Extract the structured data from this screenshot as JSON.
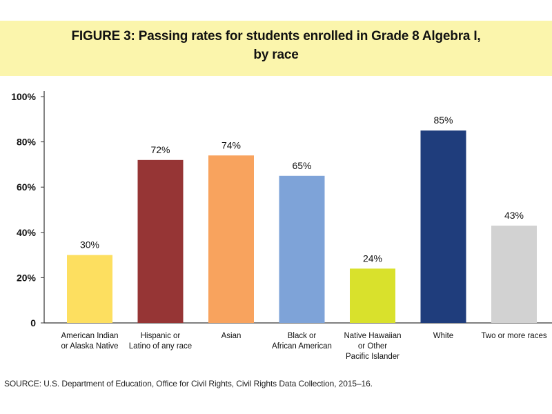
{
  "figure": {
    "title_line_1": "FIGURE 3: Passing rates for students enrolled in Grade 8 Algebra I,",
    "title_line_2": "by race",
    "source": "SOURCE: U.S. Department of Education, Office for Civil Rights, Civil Rights Data Collection, 2015–16."
  },
  "chart_data": {
    "type": "bar",
    "title": "FIGURE 3: Passing rates for students enrolled in Grade 8 Algebra I, by race",
    "categories": [
      [
        "American Indian",
        "or Alaska Native"
      ],
      [
        "Hispanic or",
        "Latino of any race"
      ],
      [
        "Asian"
      ],
      [
        "Black or",
        "African American"
      ],
      [
        "Native Hawaiian",
        "or Other",
        "Pacific Islander"
      ],
      [
        "White"
      ],
      [
        "Two or more races"
      ]
    ],
    "values": [
      30,
      72,
      74,
      65,
      24,
      85,
      43
    ],
    "data_labels": [
      "30%",
      "72%",
      "74%",
      "65%",
      "24%",
      "85%",
      "43%"
    ],
    "colors": [
      "#fddf60",
      "#963535",
      "#f8a35e",
      "#7ea3d8",
      "#d9e12c",
      "#1f3d7c",
      "#d2d2d2"
    ],
    "y_ticks": [
      0,
      20,
      40,
      60,
      80,
      100
    ],
    "y_tick_labels": [
      "0",
      "20%",
      "40%",
      "60%",
      "80%",
      "100%"
    ],
    "ylim": [
      0,
      100
    ],
    "xlabel": "",
    "ylabel": "",
    "grid": false,
    "legend": "none"
  }
}
